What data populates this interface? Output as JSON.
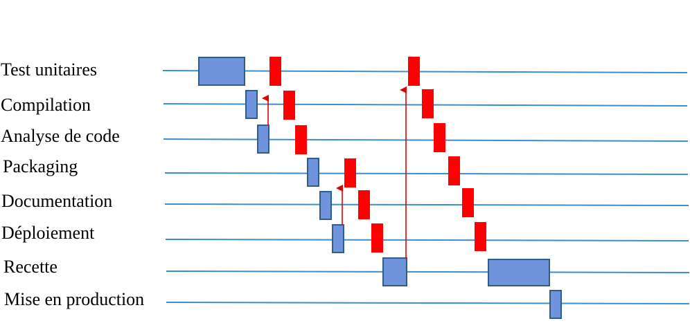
{
  "diagram": {
    "type": "pipeline-timeline",
    "colors": {
      "lane_line": "#3C8DC8",
      "blue_block_fill": "#7094DC",
      "blue_block_stroke": "#2F5C8A",
      "red_block_fill": "#FF0000",
      "arrow": "#E00000",
      "label_text": "#000000"
    },
    "lanes": [
      {
        "id": "test",
        "label": "Test unitaires"
      },
      {
        "id": "compile",
        "label": "Compilation"
      },
      {
        "id": "analyse",
        "label": "Analyse de code"
      },
      {
        "id": "packaging",
        "label": "Packaging"
      },
      {
        "id": "documentation",
        "label": "Documentation"
      },
      {
        "id": "deploiement",
        "label": "Déploiement"
      },
      {
        "id": "recette",
        "label": "Recette"
      },
      {
        "id": "production",
        "label": "Mise en production"
      }
    ],
    "blue_blocks": [
      {
        "lane": "test"
      },
      {
        "lane": "compile"
      },
      {
        "lane": "analyse"
      },
      {
        "lane": "packaging"
      },
      {
        "lane": "documentation"
      },
      {
        "lane": "deploiement"
      },
      {
        "lane": "recette"
      },
      {
        "lane": "recette"
      },
      {
        "lane": "production"
      }
    ],
    "red_blocks": [
      {
        "lane": "test"
      },
      {
        "lane": "compile"
      },
      {
        "lane": "analyse"
      },
      {
        "lane": "packaging"
      },
      {
        "lane": "documentation"
      },
      {
        "lane": "deploiement"
      },
      {
        "lane": "test"
      },
      {
        "lane": "compile"
      },
      {
        "lane": "analyse"
      },
      {
        "lane": "packaging"
      },
      {
        "lane": "documentation"
      },
      {
        "lane": "deploiement"
      }
    ],
    "feedback_arrows": [
      {
        "from": "compile",
        "to": "test"
      },
      {
        "from": "deploiement",
        "to": "packaging"
      },
      {
        "from": "recette",
        "to": "test"
      }
    ]
  }
}
